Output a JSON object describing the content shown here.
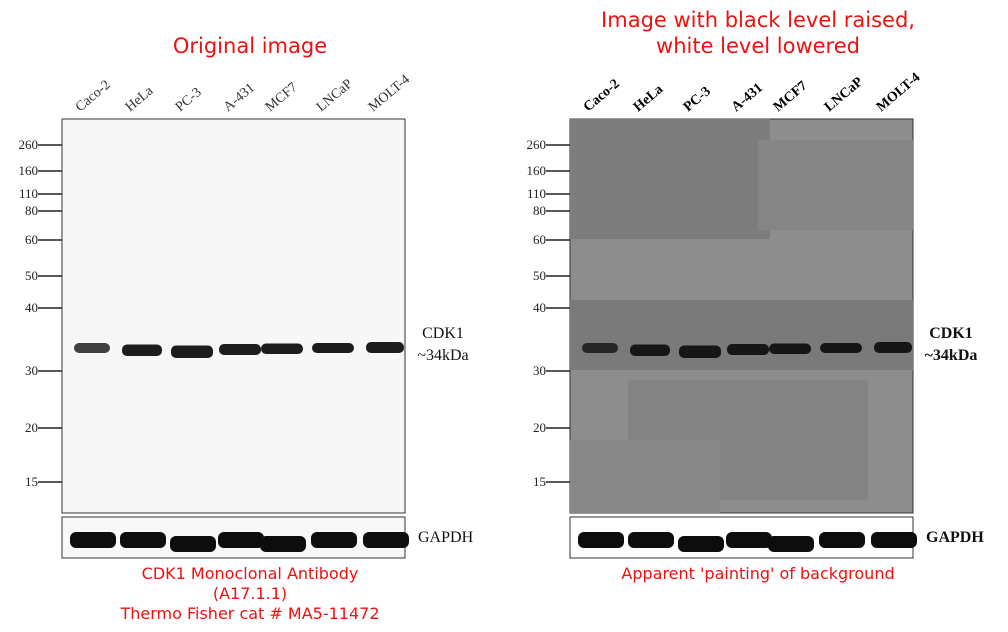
{
  "panels": [
    {
      "title": [
        "Original image"
      ],
      "lanes": [
        "Caco-2",
        "HeLa",
        "PC-3",
        "A-431",
        "MCF7",
        "LNCaP",
        "MOLT-4"
      ],
      "markers": [
        "260",
        "160",
        "110",
        "80",
        "60",
        "50",
        "40",
        "30",
        "20",
        "15"
      ],
      "target_label": [
        "CDK1",
        "~34kDa"
      ],
      "loading_label": "GAPDH",
      "caption": [
        "CDK1 Monoclonal Antibody",
        "(A17.1.1)",
        "Thermo Fisher cat # MA5-11472"
      ]
    },
    {
      "title": [
        "Image with black level raised,",
        "white level lowered"
      ],
      "lanes": [
        "Caco-2",
        "HeLa",
        "PC-3",
        "A-431",
        "MCF7",
        "LNCaP",
        "MOLT-4"
      ],
      "markers": [
        "260",
        "160",
        "110",
        "80",
        "60",
        "50",
        "40",
        "30",
        "20",
        "15"
      ],
      "target_label": [
        "CDK1",
        "~34kDa"
      ],
      "loading_label": "GAPDH",
      "caption": [
        "Apparent 'painting' of background"
      ]
    }
  ]
}
